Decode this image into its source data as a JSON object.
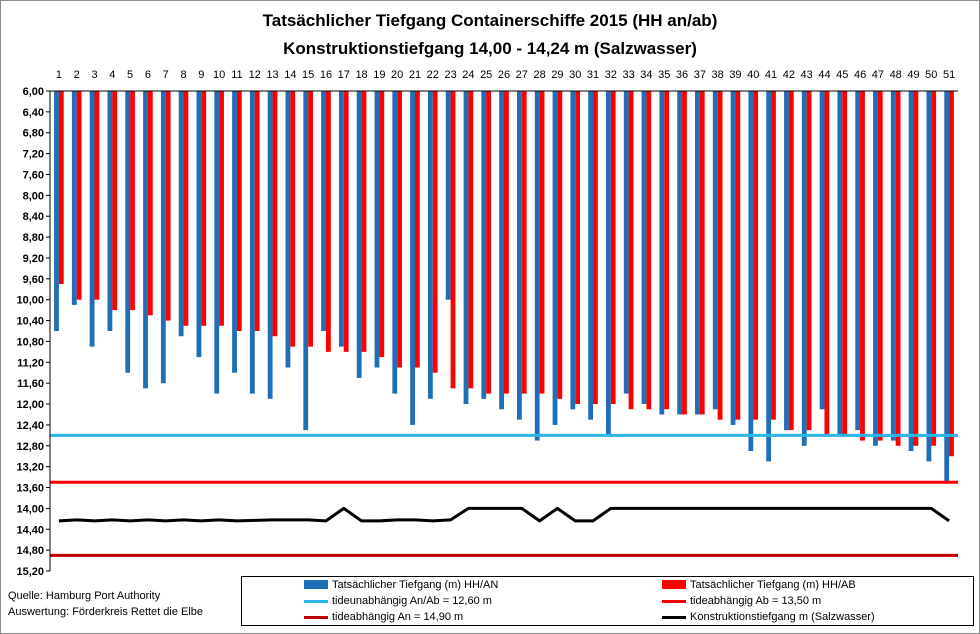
{
  "title": "Tatsächlicher  Tiefgang Containerschiffe  2015 (HH an/ab)",
  "subtitle": "Konstruktionstiefgang   14,00 - 14,24 m  (Salzwasser)",
  "source": {
    "line1": "Quelle: Hamburg Port Authority",
    "line2": "Auswertung: Förderkreis Rettet die Elbe"
  },
  "colors": {
    "an": "#1f6eb8",
    "ab": "#ff0000",
    "tide_unabh": "#2bb6e8",
    "tide_ab": "#ff0000",
    "tide_an": "#c00000",
    "konstruktion": "#000000"
  },
  "legend": [
    {
      "key": "an",
      "label": "Tatsächlicher Tiefgang (m) HH/AN",
      "style": "bar"
    },
    {
      "key": "ab",
      "label": "Tatsächlicher Tiefgang (m) HH/AB",
      "style": "bar"
    },
    {
      "key": "tide_unabh",
      "label": "tideunabhängig An/Ab = 12,60 m",
      "style": "line"
    },
    {
      "key": "tide_ab",
      "label": "tideabhängig Ab = 13,50 m",
      "style": "line"
    },
    {
      "key": "tide_an",
      "label": "tideabhängig An = 14,90 m",
      "style": "line"
    },
    {
      "key": "konstruktion",
      "label": "Konstruktionstiefgang  m (Salzwasser)",
      "style": "line"
    }
  ],
  "chart_data": {
    "type": "bar",
    "y_inverted": true,
    "ylim": [
      6.0,
      15.2
    ],
    "yticks": [
      "6,00",
      "6,40",
      "6,80",
      "7,20",
      "7,60",
      "8,00",
      "8,40",
      "8,80",
      "9,20",
      "9,60",
      "10,00",
      "10,40",
      "10,80",
      "11,20",
      "11,60",
      "12,00",
      "12,40",
      "12,80",
      "13,20",
      "13,60",
      "14,00",
      "14,40",
      "14,80",
      "15,20"
    ],
    "categories": [
      "1",
      "2",
      "3",
      "4",
      "5",
      "6",
      "7",
      "8",
      "9",
      "10",
      "11",
      "12",
      "13",
      "14",
      "15",
      "16",
      "17",
      "18",
      "19",
      "20",
      "21",
      "22",
      "23",
      "24",
      "25",
      "26",
      "27",
      "28",
      "29",
      "30",
      "31",
      "32",
      "33",
      "34",
      "35",
      "36",
      "37",
      "38",
      "39",
      "40",
      "41",
      "42",
      "43",
      "44",
      "45",
      "46",
      "47",
      "48",
      "49",
      "50",
      "51"
    ],
    "series": [
      {
        "name": "Tatsächlicher Tiefgang (m) HH/AN",
        "key": "an",
        "type": "bar",
        "values": [
          10.6,
          10.1,
          10.9,
          10.6,
          11.4,
          11.7,
          11.6,
          10.7,
          11.1,
          11.8,
          11.4,
          11.8,
          11.9,
          11.3,
          12.5,
          10.6,
          10.9,
          11.5,
          11.3,
          11.8,
          12.4,
          11.9,
          10.0,
          12.0,
          11.9,
          12.1,
          12.3,
          12.7,
          12.4,
          12.1,
          12.3,
          12.6,
          11.8,
          12.0,
          12.2,
          12.2,
          12.2,
          12.1,
          12.4,
          12.9,
          13.1,
          12.5,
          12.8,
          12.1,
          12.6,
          12.5,
          12.8,
          12.7,
          12.9,
          13.1,
          13.5
        ]
      },
      {
        "name": "Tatsächlicher Tiefgang (m) HH/AB",
        "key": "ab",
        "type": "bar",
        "values": [
          9.7,
          10.0,
          10.0,
          10.2,
          10.2,
          10.3,
          10.4,
          10.5,
          10.5,
          10.5,
          10.6,
          10.6,
          10.7,
          10.9,
          10.9,
          11.0,
          11.0,
          11.0,
          11.1,
          11.3,
          11.3,
          11.4,
          11.7,
          11.7,
          11.8,
          11.8,
          11.8,
          11.8,
          11.9,
          12.0,
          12.0,
          12.0,
          12.1,
          12.1,
          12.1,
          12.2,
          12.2,
          12.3,
          12.3,
          12.3,
          12.3,
          12.5,
          12.5,
          12.6,
          12.6,
          12.7,
          12.7,
          12.8,
          12.8,
          12.8,
          13.0
        ]
      },
      {
        "name": "tideunabhängig An/Ab = 12,60 m",
        "key": "tide_unabh",
        "type": "line",
        "constant": 12.6
      },
      {
        "name": "tideabhängig Ab = 13,50 m",
        "key": "tide_ab",
        "type": "line",
        "constant": 13.5
      },
      {
        "name": "tideabhängig An = 14,90 m",
        "key": "tide_an",
        "type": "line",
        "constant": 14.9
      },
      {
        "name": "Konstruktionstiefgang  m (Salzwasser)",
        "key": "konstruktion",
        "type": "line",
        "values": [
          14.24,
          14.22,
          14.24,
          14.22,
          14.24,
          14.22,
          14.24,
          14.22,
          14.24,
          14.22,
          14.24,
          14.23,
          14.22,
          14.22,
          14.22,
          14.24,
          14.0,
          14.24,
          14.24,
          14.22,
          14.22,
          14.24,
          14.22,
          14.0,
          14.0,
          14.0,
          14.0,
          14.24,
          14.0,
          14.24,
          14.24,
          14.0,
          14.0,
          14.0,
          14.0,
          14.0,
          14.0,
          14.0,
          14.0,
          14.0,
          14.0,
          14.0,
          14.0,
          14.0,
          14.0,
          14.0,
          14.0,
          14.0,
          14.0,
          14.0,
          14.24
        ]
      }
    ],
    "grid": false
  }
}
